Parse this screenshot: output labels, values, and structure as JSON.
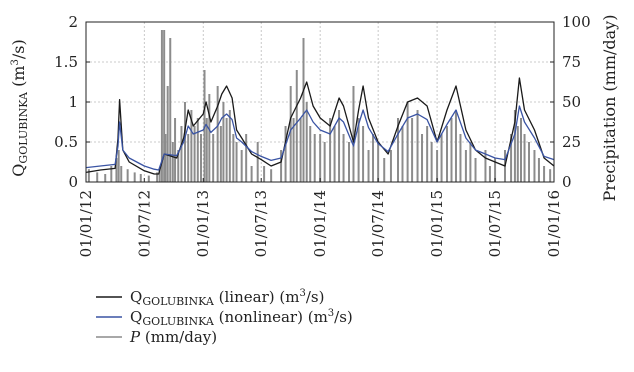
{
  "chart_data": {
    "type": "line",
    "title": "",
    "x_axis": {
      "ticks": [
        "01/01/12",
        "01/07/12",
        "01/01/13",
        "01/07/13",
        "01/01/14",
        "01/07/14",
        "01/01/15",
        "01/07/15",
        "01/01/16"
      ],
      "range": [
        "01/01/12",
        "01/01/16"
      ]
    },
    "y_left": {
      "label_main": "Q",
      "label_sub": "GOLUBINKA",
      "label_unit_open": " (m",
      "label_unit_sup": "3",
      "label_unit_close": "/s)",
      "ticks": [
        "0",
        "0.5",
        "1",
        "1.5",
        "2"
      ],
      "range": [
        0,
        2
      ]
    },
    "y_right": {
      "label": "Precipitation (mm/day)",
      "ticks": [
        "0",
        "25",
        "50",
        "75",
        "100"
      ],
      "range": [
        0,
        100
      ]
    },
    "grid": true,
    "legend_position": "bottom",
    "series": [
      {
        "id": "linear",
        "axis": "left",
        "color": "#1a1a1a",
        "legend": {
          "main": "Q",
          "sub": "GOLUBINKA",
          "rest": " (linear) (m",
          "sup": "3",
          "close": "/s)"
        },
        "points": [
          [
            "01/01/12",
            0.12
          ],
          [
            "15/02/12",
            0.15
          ],
          [
            "01/04/12",
            0.17
          ],
          [
            "10/04/12",
            0.55
          ],
          [
            "15/04/12",
            1.03
          ],
          [
            "25/04/12",
            0.4
          ],
          [
            "15/05/12",
            0.25
          ],
          [
            "01/07/12",
            0.14
          ],
          [
            "01/08/12",
            0.1
          ],
          [
            "15/08/12",
            0.1
          ],
          [
            "01/09/12",
            0.35
          ],
          [
            "10/10/12",
            0.3
          ],
          [
            "01/11/12",
            0.55
          ],
          [
            "15/11/12",
            0.9
          ],
          [
            "01/12/12",
            0.7
          ],
          [
            "01/01/13",
            0.85
          ],
          [
            "10/01/13",
            1.0
          ],
          [
            "25/01/13",
            0.75
          ],
          [
            "15/02/13",
            0.95
          ],
          [
            "28/02/13",
            1.1
          ],
          [
            "15/03/13",
            1.2
          ],
          [
            "01/04/13",
            1.05
          ],
          [
            "15/04/13",
            0.65
          ],
          [
            "01/05/13",
            0.55
          ],
          [
            "01/06/13",
            0.35
          ],
          [
            "01/07/13",
            0.28
          ],
          [
            "01/08/13",
            0.2
          ],
          [
            "01/09/13",
            0.25
          ],
          [
            "01/10/13",
            0.8
          ],
          [
            "01/11/13",
            1.05
          ],
          [
            "20/11/13",
            1.25
          ],
          [
            "10/12/13",
            0.95
          ],
          [
            "01/01/14",
            0.8
          ],
          [
            "01/02/14",
            0.7
          ],
          [
            "01/03/14",
            1.05
          ],
          [
            "15/03/14",
            0.95
          ],
          [
            "15/04/14",
            0.5
          ],
          [
            "01/05/14",
            0.9
          ],
          [
            "15/05/14",
            1.2
          ],
          [
            "01/06/14",
            0.8
          ],
          [
            "01/07/14",
            0.5
          ],
          [
            "01/08/14",
            0.35
          ],
          [
            "01/09/14",
            0.7
          ],
          [
            "01/10/14",
            1.0
          ],
          [
            "01/11/14",
            1.05
          ],
          [
            "01/12/14",
            0.95
          ],
          [
            "01/01/15",
            0.5
          ],
          [
            "01/02/15",
            0.9
          ],
          [
            "01/03/15",
            1.2
          ],
          [
            "01/04/15",
            0.65
          ],
          [
            "01/05/15",
            0.4
          ],
          [
            "01/06/15",
            0.3
          ],
          [
            "01/07/15",
            0.25
          ],
          [
            "01/08/15",
            0.2
          ],
          [
            "01/09/15",
            0.75
          ],
          [
            "15/09/15",
            1.3
          ],
          [
            "01/10/15",
            0.9
          ],
          [
            "01/11/15",
            0.65
          ],
          [
            "01/12/15",
            0.3
          ],
          [
            "01/01/16",
            0.2
          ]
        ]
      },
      {
        "id": "nonlinear",
        "axis": "left",
        "color": "#3a54a4",
        "legend": {
          "main": "Q",
          "sub": "GOLUBINKA",
          "rest": " (nonlinear) (m",
          "sup": "3",
          "close": "/s)"
        },
        "points": [
          [
            "01/01/12",
            0.18
          ],
          [
            "15/02/12",
            0.2
          ],
          [
            "01/04/12",
            0.22
          ],
          [
            "10/04/12",
            0.45
          ],
          [
            "15/04/12",
            0.75
          ],
          [
            "25/04/12",
            0.4
          ],
          [
            "15/05/12",
            0.3
          ],
          [
            "01/07/12",
            0.2
          ],
          [
            "01/08/12",
            0.16
          ],
          [
            "15/08/12",
            0.15
          ],
          [
            "01/09/12",
            0.35
          ],
          [
            "10/10/12",
            0.33
          ],
          [
            "01/11/12",
            0.5
          ],
          [
            "15/11/12",
            0.7
          ],
          [
            "01/12/12",
            0.6
          ],
          [
            "01/01/13",
            0.65
          ],
          [
            "10/01/13",
            0.72
          ],
          [
            "25/01/13",
            0.62
          ],
          [
            "15/02/13",
            0.7
          ],
          [
            "28/02/13",
            0.8
          ],
          [
            "15/03/13",
            0.85
          ],
          [
            "01/04/13",
            0.78
          ],
          [
            "15/04/13",
            0.55
          ],
          [
            "01/05/13",
            0.5
          ],
          [
            "01/06/13",
            0.38
          ],
          [
            "01/07/13",
            0.32
          ],
          [
            "01/08/13",
            0.27
          ],
          [
            "01/09/13",
            0.3
          ],
          [
            "01/10/13",
            0.65
          ],
          [
            "01/11/13",
            0.8
          ],
          [
            "20/11/13",
            0.9
          ],
          [
            "10/12/13",
            0.75
          ],
          [
            "01/01/14",
            0.65
          ],
          [
            "01/02/14",
            0.6
          ],
          [
            "01/03/14",
            0.8
          ],
          [
            "15/03/14",
            0.75
          ],
          [
            "15/04/14",
            0.45
          ],
          [
            "01/05/14",
            0.72
          ],
          [
            "15/05/14",
            0.9
          ],
          [
            "01/06/14",
            0.68
          ],
          [
            "01/07/14",
            0.48
          ],
          [
            "01/08/14",
            0.38
          ],
          [
            "01/09/14",
            0.6
          ],
          [
            "01/10/14",
            0.8
          ],
          [
            "01/11/14",
            0.85
          ],
          [
            "01/12/14",
            0.78
          ],
          [
            "01/01/15",
            0.5
          ],
          [
            "01/02/15",
            0.72
          ],
          [
            "01/03/15",
            0.9
          ],
          [
            "01/04/15",
            0.55
          ],
          [
            "01/05/15",
            0.4
          ],
          [
            "01/06/15",
            0.35
          ],
          [
            "01/07/15",
            0.3
          ],
          [
            "01/08/15",
            0.28
          ],
          [
            "01/09/15",
            0.6
          ],
          [
            "15/09/15",
            0.95
          ],
          [
            "01/10/15",
            0.75
          ],
          [
            "01/11/15",
            0.55
          ],
          [
            "01/12/15",
            0.32
          ],
          [
            "01/01/16",
            0.28
          ]
        ]
      },
      {
        "id": "precip",
        "axis": "right",
        "color": "#8c8c8c",
        "render": "bars",
        "legend": {
          "main": "P",
          "italic_main": true,
          "rest": " (mm/day)"
        },
        "points": [
          [
            "10/01/12",
            8
          ],
          [
            "05/02/12",
            6
          ],
          [
            "01/03/12",
            5
          ],
          [
            "20/03/12",
            10
          ],
          [
            "05/04/12",
            15
          ],
          [
            "12/04/12",
            20
          ],
          [
            "20/04/12",
            10
          ],
          [
            "10/05/12",
            8
          ],
          [
            "01/06/12",
            6
          ],
          [
            "20/06/12",
            5
          ],
          [
            "15/07/12",
            4
          ],
          [
            "10/08/12",
            6
          ],
          [
            "18/08/12",
            8
          ],
          [
            "25/08/12",
            95
          ],
          [
            "01/09/12",
            95
          ],
          [
            "05/09/12",
            30
          ],
          [
            "12/09/12",
            60
          ],
          [
            "20/09/12",
            90
          ],
          [
            "28/09/12",
            25
          ],
          [
            "05/10/12",
            40
          ],
          [
            "15/10/12",
            20
          ],
          [
            "25/10/12",
            35
          ],
          [
            "05/11/12",
            50
          ],
          [
            "15/11/12",
            30
          ],
          [
            "25/11/12",
            45
          ],
          [
            "05/12/12",
            35
          ],
          [
            "15/12/12",
            40
          ],
          [
            "25/12/12",
            30
          ],
          [
            "05/01/13",
            70
          ],
          [
            "12/01/13",
            40
          ],
          [
            "20/01/13",
            55
          ],
          [
            "01/02/13",
            30
          ],
          [
            "15/02/13",
            60
          ],
          [
            "25/02/13",
            35
          ],
          [
            "05/03/13",
            50
          ],
          [
            "15/03/13",
            40
          ],
          [
            "25/03/13",
            45
          ],
          [
            "05/04/13",
            30
          ],
          [
            "15/04/13",
            25
          ],
          [
            "01/05/13",
            20
          ],
          [
            "15/05/13",
            30
          ],
          [
            "01/06/13",
            10
          ],
          [
            "20/06/13",
            25
          ],
          [
            "10/07/13",
            10
          ],
          [
            "01/08/13",
            8
          ],
          [
            "01/09/13",
            20
          ],
          [
            "15/09/13",
            35
          ],
          [
            "01/10/13",
            60
          ],
          [
            "10/10/13",
            40
          ],
          [
            "20/10/13",
            70
          ],
          [
            "01/11/13",
            40
          ],
          [
            "10/11/13",
            90
          ],
          [
            "20/11/13",
            50
          ],
          [
            "01/12/13",
            35
          ],
          [
            "15/12/13",
            30
          ],
          [
            "01/01/14",
            30
          ],
          [
            "15/01/14",
            25
          ],
          [
            "01/02/14",
            40
          ],
          [
            "15/02/14",
            35
          ],
          [
            "01/03/14",
            45
          ],
          [
            "15/03/14",
            30
          ],
          [
            "01/04/14",
            25
          ],
          [
            "15/04/14",
            60
          ],
          [
            "01/05/14",
            40
          ],
          [
            "15/05/14",
            35
          ],
          [
            "01/06/14",
            20
          ],
          [
            "15/06/14",
            30
          ],
          [
            "01/07/14",
            25
          ],
          [
            "20/07/14",
            15
          ],
          [
            "10/08/14",
            20
          ],
          [
            "01/09/14",
            40
          ],
          [
            "15/09/14",
            35
          ],
          [
            "01/10/14",
            50
          ],
          [
            "15/10/14",
            40
          ],
          [
            "01/11/14",
            45
          ],
          [
            "15/11/14",
            30
          ],
          [
            "01/12/14",
            35
          ],
          [
            "15/12/14",
            25
          ],
          [
            "01/01/15",
            20
          ],
          [
            "15/01/15",
            30
          ],
          [
            "01/02/15",
            35
          ],
          [
            "15/02/15",
            40
          ],
          [
            "01/03/15",
            45
          ],
          [
            "15/03/15",
            30
          ],
          [
            "01/04/15",
            20
          ],
          [
            "15/04/15",
            25
          ],
          [
            "01/05/15",
            15
          ],
          [
            "01/06/15",
            20
          ],
          [
            "15/06/15",
            10
          ],
          [
            "01/07/15",
            15
          ],
          [
            "01/08/15",
            20
          ],
          [
            "20/08/15",
            30
          ],
          [
            "01/09/15",
            45
          ],
          [
            "10/09/15",
            35
          ],
          [
            "20/09/15",
            40
          ],
          [
            "01/10/15",
            30
          ],
          [
            "15/10/15",
            25
          ],
          [
            "01/11/15",
            20
          ],
          [
            "15/11/15",
            15
          ],
          [
            "01/12/15",
            10
          ],
          [
            "20/12/15",
            8
          ]
        ]
      }
    ]
  }
}
